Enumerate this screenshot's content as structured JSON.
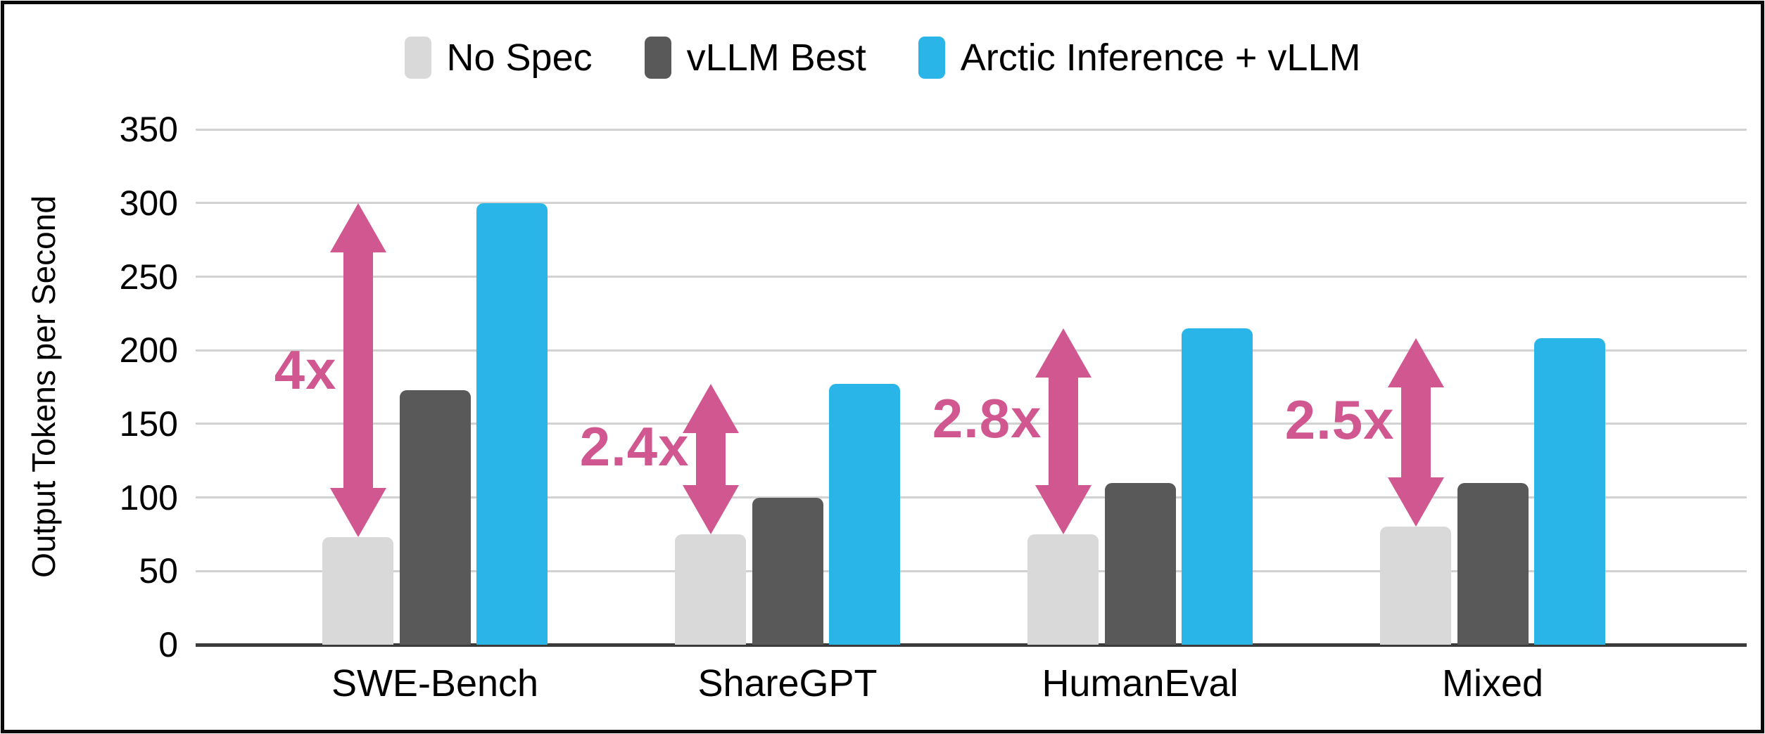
{
  "chart_data": {
    "type": "bar",
    "title": "",
    "ylabel": "Output Tokens per Second",
    "xlabel": "",
    "categories": [
      "SWE-Bench",
      "ShareGPT",
      "HumanEval",
      "Mixed"
    ],
    "series": [
      {
        "name": "No Spec",
        "color": "#d9d9d9",
        "values": [
          73,
          75,
          75,
          80
        ]
      },
      {
        "name": "vLLM Best",
        "color": "#595959",
        "values": [
          173,
          100,
          110,
          110
        ]
      },
      {
        "name": "Arctic Inference + vLLM",
        "color": "#29b5e8",
        "values": [
          300,
          177,
          215,
          208
        ]
      }
    ],
    "annotations": [
      {
        "category": "SWE-Bench",
        "label": "4x",
        "from_series": "No Spec",
        "to_series": "Arctic Inference + vLLM"
      },
      {
        "category": "ShareGPT",
        "label": "2.4x",
        "from_series": "No Spec",
        "to_series": "Arctic Inference + vLLM"
      },
      {
        "category": "HumanEval",
        "label": "2.8x",
        "from_series": "No Spec",
        "to_series": "Arctic Inference + vLLM"
      },
      {
        "category": "Mixed",
        "label": "2.5x",
        "from_series": "No Spec",
        "to_series": "Arctic Inference + vLLM"
      }
    ],
    "yticks": [
      0,
      50,
      100,
      150,
      200,
      250,
      300,
      350
    ],
    "ylim": [
      0,
      350
    ],
    "grid": true,
    "legend_position": "top",
    "annotation_color": "#d0578f",
    "gridline_color": "#d2d2d2",
    "axis_color": "#3b3b3b"
  }
}
